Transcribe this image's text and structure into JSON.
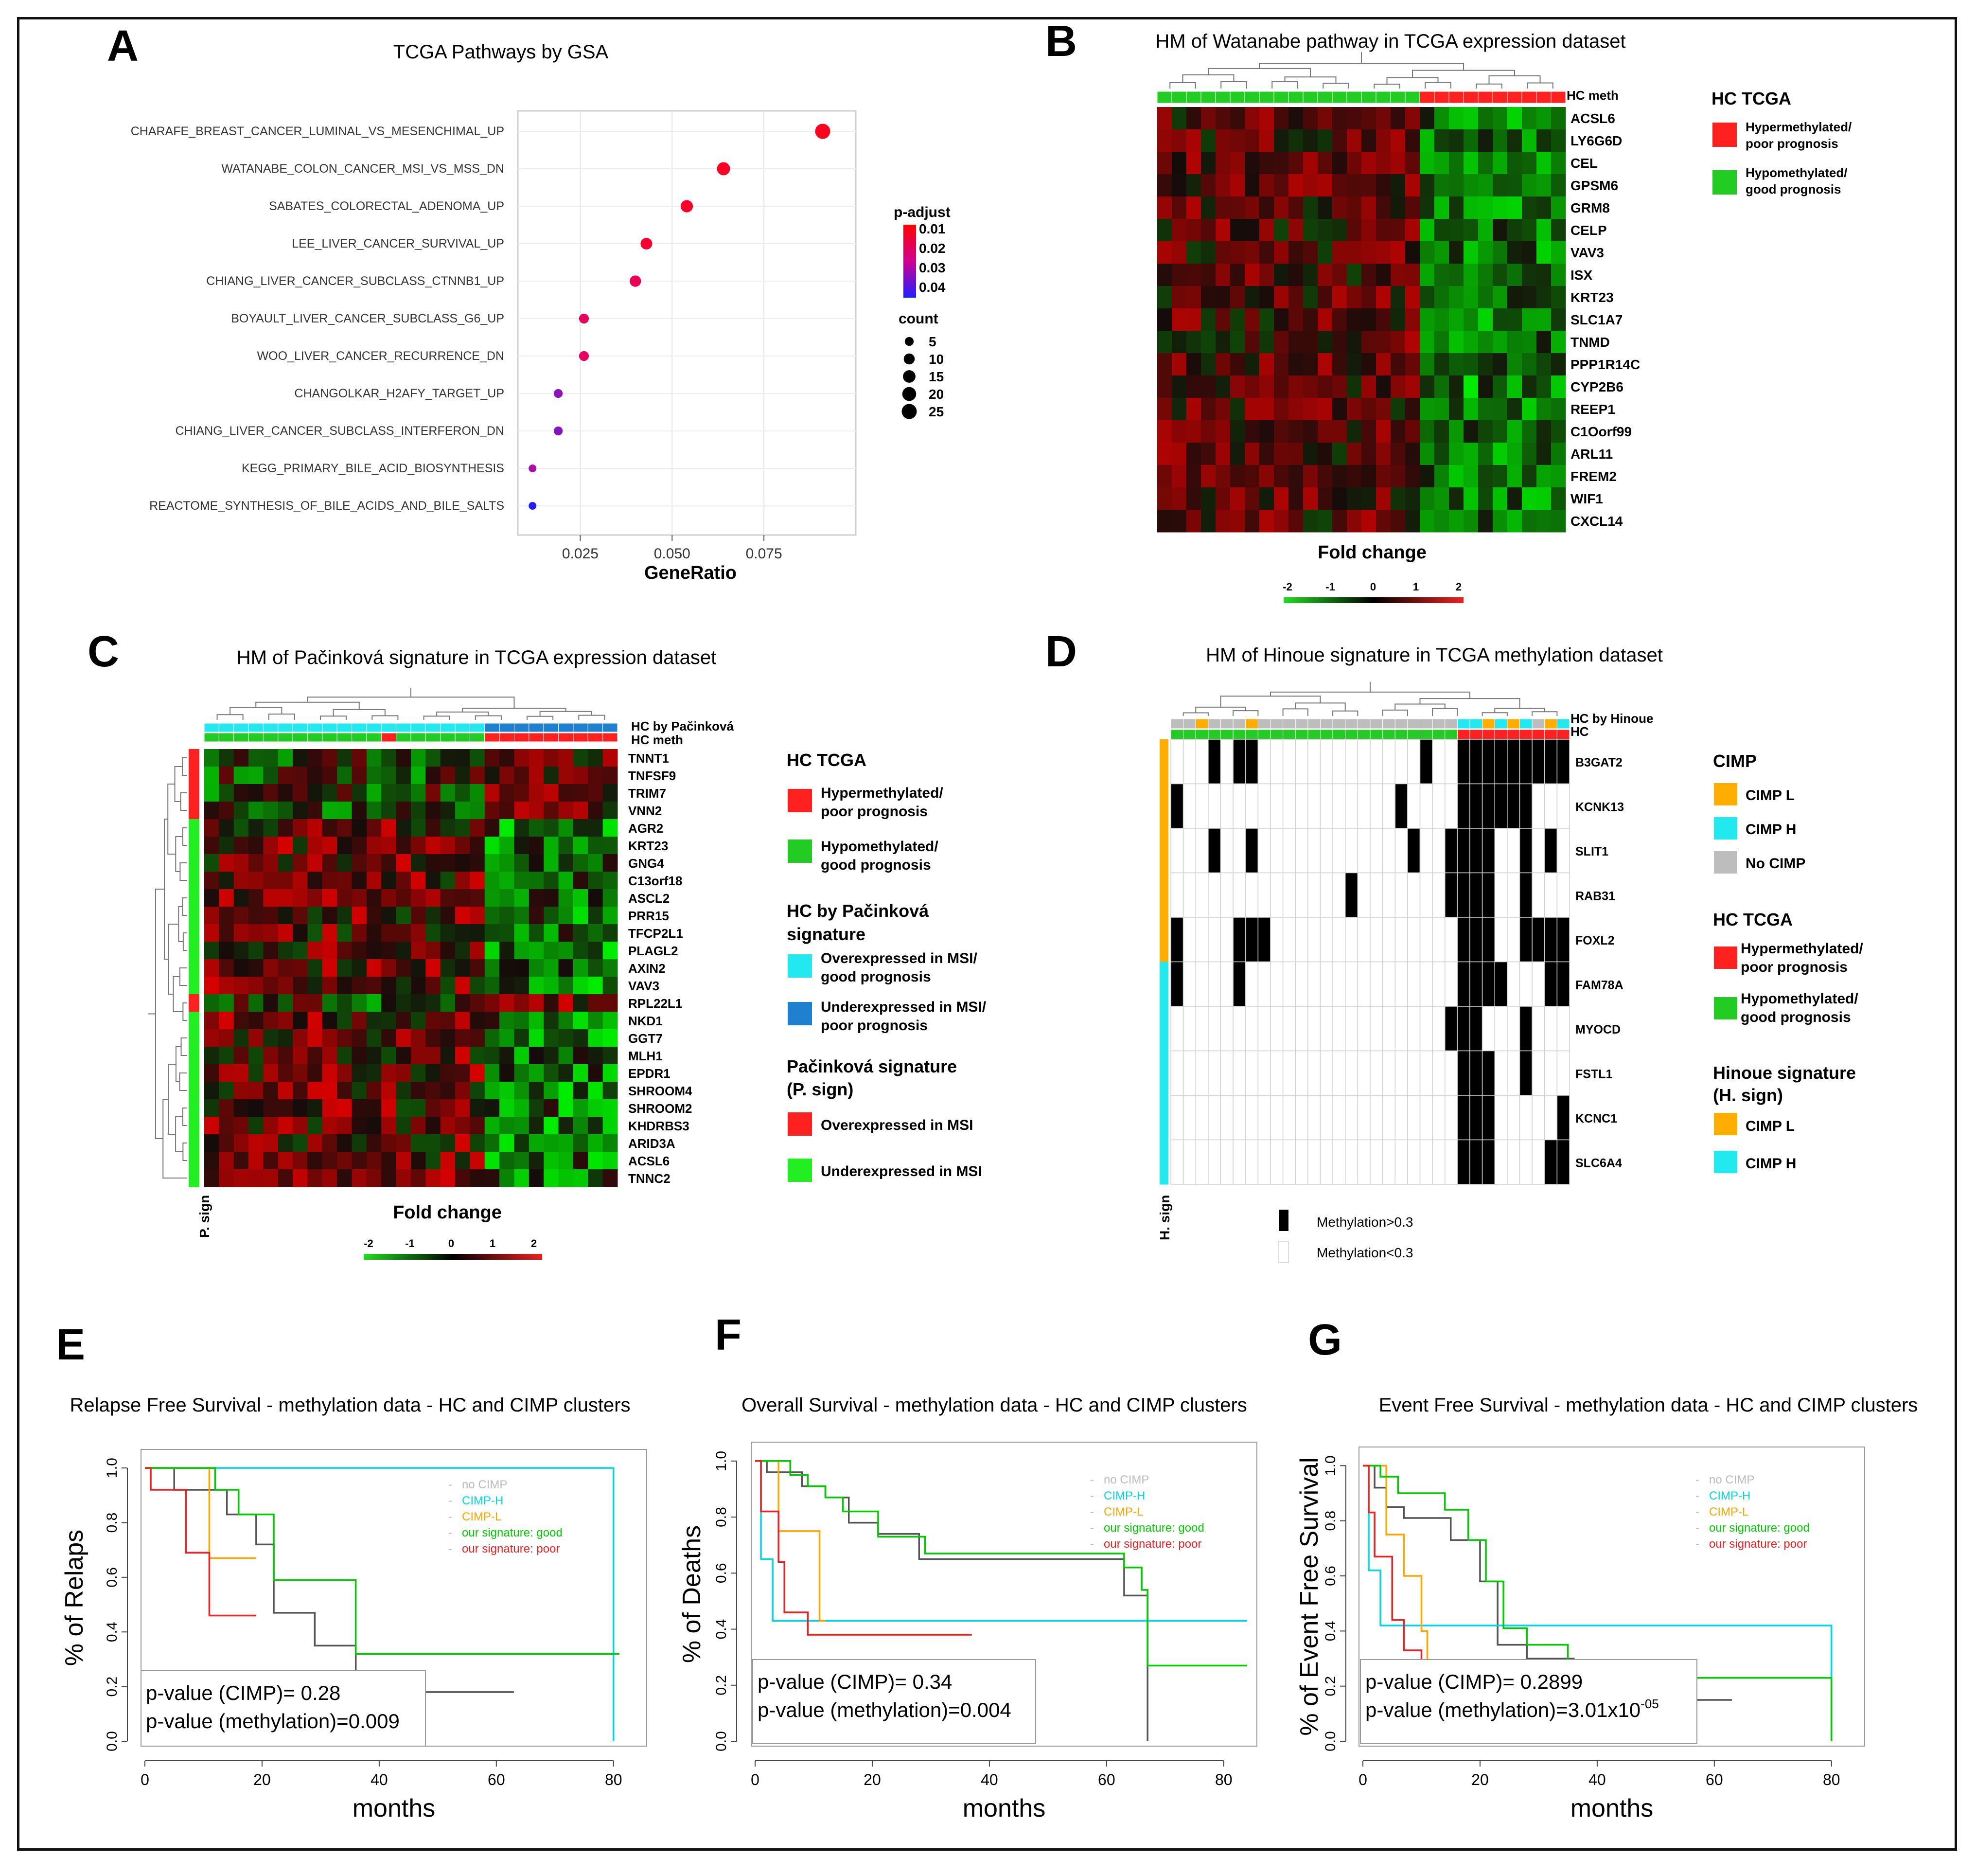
{
  "panels": {
    "A": {
      "letter": "A",
      "title": "TCGA Pathways  by GSA",
      "xlabel": "GeneRatio",
      "xticks": [
        0.025,
        0.05,
        0.075
      ],
      "xtick_labels": [
        "0.025",
        "0.050",
        "0.075"
      ],
      "xlim": [
        0.008,
        0.1
      ],
      "padj_title": "p-adjust",
      "padj_labels": [
        "0.01",
        "0.02",
        "0.03",
        "0.04"
      ],
      "count_title": "count",
      "count_labels": [
        "5",
        "10",
        "15",
        "20",
        "25"
      ]
    },
    "B": {
      "letter": "B",
      "title": "HM of Watanabe pathway in TCGA expression dataset",
      "bar_label": "HC meth",
      "legend_title": "HC TCGA",
      "legend_items": [
        "Hypermethylated/",
        "poor prognosis",
        "Hypomethylated/",
        "good prognosis"
      ],
      "fold_label": "Fold change",
      "scale_labels": [
        "-2",
        "-1",
        "0",
        "1",
        "2"
      ]
    },
    "C": {
      "letter": "C",
      "title": "HM of Pačinková signature in TCGA expression dataset",
      "bar_labels": [
        "HC by Pačinková",
        "HC meth"
      ],
      "side_label": "P. sign",
      "legend": {
        "hc_title": "HC TCGA",
        "hyper": [
          "Hypermethylated/",
          "poor prognosis"
        ],
        "hypo": [
          "Hypomethylated/",
          "good prognosis"
        ],
        "pac_title": [
          "HC by Pačinková",
          "signature"
        ],
        "over": [
          "Overexpressed in MSI/",
          "good prognosis"
        ],
        "under": [
          "Underexpressed in MSI/",
          "poor prognosis"
        ],
        "psign_title": [
          "Pačinková signature",
          "(P. sign)"
        ],
        "over_msi": "Overexpressed in MSI",
        "under_msi": "Underexpressed in MSI"
      },
      "fold_label": "Fold change",
      "scale_labels": [
        "-2",
        "-1",
        "0",
        "1",
        "2"
      ]
    },
    "D": {
      "letter": "D",
      "title": "HM of Hinoue signature in TCGA methylation dataset",
      "bar_labels": [
        "HC by Hinoue",
        "HC"
      ],
      "side_label": "H. sign",
      "genes": [
        "B3GAT2",
        "KCNK13",
        "SLIT1",
        "RAB31",
        "FOXL2",
        "FAM78A",
        "MYOCD",
        "FSTL1",
        "KCNC1",
        "SLC6A4"
      ],
      "meth_legend": [
        "Methylation>0.3",
        "Methylation<0.3"
      ],
      "legend": {
        "cimp_title": "CIMP",
        "cimp_l": "CIMP L",
        "cimp_h": "CIMP H",
        "no_cimp": "No CIMP",
        "hc_title": "HC TCGA",
        "hyper": [
          "Hypermethylated/",
          "poor prognosis"
        ],
        "hypo": [
          "Hypomethylated/",
          "good prognosis"
        ],
        "hsign_title": [
          "Hinoue signature",
          "(H. sign)"
        ],
        "hs_l": "CIMP L",
        "hs_h": "CIMP H"
      }
    },
    "E": {
      "letter": "E",
      "title": "Relapse Free Survival  - methylation data - HC and CIMP clusters",
      "ylabel": "% of Relaps",
      "xlabel": "months",
      "pvals": [
        "p-value (CIMP)= 0.28",
        "p-value (methylation)=0.009"
      ]
    },
    "F": {
      "letter": "F",
      "title": "Overall Survival - methylation data - HC and CIMP clusters",
      "ylabel": "% of Deaths",
      "xlabel": "months",
      "pvals": [
        "p-value (CIMP)= 0.34",
        "p-value (methylation)=0.004"
      ]
    },
    "G": {
      "letter": "G",
      "title": "Event Free Survival - methylation data - HC and CIMP clusters",
      "ylabel": "% of Event Free Survival",
      "xlabel": "months",
      "pvals": [
        "p-value (CIMP)= 0.2899",
        "p-value (methylation)=3.01x10"
      ],
      "pval_exp": "-05"
    }
  },
  "km_legend": [
    "no CIMP",
    "CIMP-H",
    "CIMP-L",
    "our signature: good",
    "our signature: poor"
  ],
  "km_colors": [
    "#bbbbbb",
    "#00d8e8",
    "#ffa500",
    "#00cc00",
    "#ee2020"
  ],
  "km_ylabels": [
    "0.0",
    "0.2",
    "0.4",
    "0.6",
    "0.8",
    "1.0"
  ],
  "colors": {
    "hyper": "#ff2020",
    "hypo": "#22cc22",
    "cimp_l": "#ffae00",
    "cimp_h": "#22e8f0",
    "no_cimp": "#bdbdbd",
    "over_msi_pac": "#22e8f0",
    "under_msi_pac": "#2080d0",
    "psign_over": "#ff2020",
    "psign_under": "#22ee22"
  },
  "chart_data": [
    {
      "type": "scatter",
      "title": "TCGA Pathways  by GSA",
      "xlabel": "GeneRatio",
      "points": [
        {
          "term": "CHARAFE_BREAST_CANCER_LUMINAL_VS_MESENCHIMAL_UP",
          "x": 0.091,
          "count": 25,
          "padj": 0.005
        },
        {
          "term": "WATANABE_COLON_CANCER_MSI_VS_MSS_DN",
          "x": 0.064,
          "count": 17,
          "padj": 0.006
        },
        {
          "term": "SABATES_COLORECTAL_ADENOMA_UP",
          "x": 0.054,
          "count": 14,
          "padj": 0.007
        },
        {
          "term": "LEE_LIVER_CANCER_SURVIVAL_UP",
          "x": 0.043,
          "count": 12,
          "padj": 0.008
        },
        {
          "term": "CHIANG_LIVER_CANCER_SUBCLASS_CTNNB1_UP",
          "x": 0.04,
          "count": 11,
          "padj": 0.015
        },
        {
          "term": "BOYAULT_LIVER_CANCER_SUBCLASS_G6_UP",
          "x": 0.026,
          "count": 7,
          "padj": 0.016
        },
        {
          "term": "WOO_LIVER_CANCER_RECURRENCE_DN",
          "x": 0.026,
          "count": 7,
          "padj": 0.017
        },
        {
          "term": "CHANGOLKAR_H2AFY_TARGET_UP",
          "x": 0.019,
          "count": 5,
          "padj": 0.033
        },
        {
          "term": "CHIANG_LIVER_CANCER_SUBCLASS_INTERFERON_DN",
          "x": 0.019,
          "count": 5,
          "padj": 0.034
        },
        {
          "term": "KEGG_PRIMARY_BILE_ACID_BIOSYNTHESIS",
          "x": 0.012,
          "count": 3,
          "padj": 0.03
        },
        {
          "term": "REACTOME_SYNTHESIS_OF_BILE_ACIDS_AND_BILE_SALTS",
          "x": 0.012,
          "count": 3,
          "padj": 0.045
        }
      ]
    },
    {
      "type": "heatmap",
      "title": "HM of Watanabe pathway in TCGA expression dataset",
      "rows": [
        "ACSL6",
        "LY6G6D",
        "CEL",
        "GPSM6",
        "GRM8",
        "CELP",
        "VAV3",
        "ISX",
        "KRT23",
        "SLC1A7",
        "TNMD",
        "PPP1R14C",
        "CYP2B6",
        "REEP1",
        "C1Oorf99",
        "ARL11",
        "FREM2",
        "WIF1",
        "CXCL14"
      ],
      "n_cols": 28,
      "hc_meth": {
        "hypomethylated_cols": 18,
        "hypermethylated_cols": 10
      },
      "scale": [
        -2,
        2
      ]
    },
    {
      "type": "heatmap",
      "title": "HM of Pačinková signature in TCGA expression dataset",
      "rows": [
        "TNNT1",
        "TNFSF9",
        "TRIM7",
        "VNN2",
        "AGR2",
        "KRT23",
        "GNG4",
        "C13orf18",
        "ASCL2",
        "PRR15",
        "TFCP2L1",
        "PLAGL2",
        "AXIN2",
        "VAV3",
        "RPL22L1",
        "NKD1",
        "GGT7",
        "MLH1",
        "EPDR1",
        "SHROOM4",
        "SHROOM2",
        "KHDRBS3",
        "ARID3A",
        "ACSL6",
        "TNNC2"
      ],
      "n_cols": 28,
      "scale": [
        -2,
        2
      ]
    },
    {
      "type": "heatmap",
      "title": "HM of Hinoue signature in TCGA methylation dataset",
      "rows": [
        "B3GAT2",
        "KCNK13",
        "SLIT1",
        "RAB31",
        "FOXL2",
        "FAM78A",
        "MYOCD",
        "FSTL1",
        "KCNC1",
        "SLC6A4"
      ],
      "n_cols": 32,
      "values": "binary (Methylation>0.3 black, <0.3 white)"
    },
    {
      "type": "line",
      "title": "Relapse Free Survival  - methylation data - HC and CIMP clusters",
      "xlabel": "months",
      "ylabel": "% of Relaps",
      "xlim": [
        0,
        85
      ],
      "ylim": [
        0,
        1.05
      ],
      "xticks": [
        0,
        20,
        40,
        60,
        80
      ],
      "series": [
        {
          "name": "no CIMP",
          "color": "#555555",
          "x": [
            0,
            5,
            14,
            19,
            22,
            29,
            36,
            63
          ],
          "y": [
            1,
            0.92,
            0.83,
            0.72,
            0.47,
            0.35,
            0.18,
            0.18
          ]
        },
        {
          "name": "CIMP-H",
          "color": "#00d8e8",
          "x": [
            0,
            80,
            80
          ],
          "y": [
            1,
            1,
            0.0
          ]
        },
        {
          "name": "CIMP-L",
          "color": "#ffa500",
          "x": [
            0,
            11,
            19
          ],
          "y": [
            1,
            0.67,
            0.67
          ]
        },
        {
          "name": "our signature: good",
          "color": "#00cc00",
          "x": [
            0,
            12,
            16,
            22,
            36,
            81
          ],
          "y": [
            1,
            0.92,
            0.83,
            0.59,
            0.32,
            0.32
          ]
        },
        {
          "name": "our signature: poor",
          "color": "#ee2020",
          "x": [
            0,
            1,
            7,
            11,
            19
          ],
          "y": [
            1,
            0.92,
            0.69,
            0.46,
            0.46
          ]
        }
      ],
      "pvals": [
        "p-value (CIMP)= 0.28",
        "p-value (methylation)=0.009"
      ]
    },
    {
      "type": "line",
      "title": "Overall Survival - methylation data - HC and CIMP clusters",
      "xlabel": "months",
      "ylabel": "% of Deaths",
      "xlim": [
        0,
        85
      ],
      "ylim": [
        0,
        1.05
      ],
      "xticks": [
        0,
        20,
        40,
        60,
        80
      ],
      "series": [
        {
          "name": "no CIMP",
          "color": "#555555",
          "x": [
            0,
            2,
            8,
            12,
            16,
            21,
            28,
            63,
            67,
            67
          ],
          "y": [
            1,
            0.96,
            0.91,
            0.87,
            0.78,
            0.74,
            0.65,
            0.52,
            0.52,
            0.0
          ]
        },
        {
          "name": "CIMP-H",
          "color": "#00d8e8",
          "x": [
            0,
            1,
            3,
            84
          ],
          "y": [
            1,
            0.65,
            0.43,
            0.43
          ]
        },
        {
          "name": "CIMP-L",
          "color": "#ffa500",
          "x": [
            0,
            4,
            11,
            12
          ],
          "y": [
            1,
            0.75,
            0.43,
            0.43
          ]
        },
        {
          "name": "our signature: good",
          "color": "#00cc00",
          "x": [
            0,
            6,
            9,
            12,
            15,
            21,
            29,
            63,
            66,
            67,
            84
          ],
          "y": [
            1,
            0.95,
            0.91,
            0.87,
            0.82,
            0.73,
            0.67,
            0.62,
            0.54,
            0.27,
            0.27
          ]
        },
        {
          "name": "our signature: poor",
          "color": "#ee2020",
          "x": [
            0,
            1,
            4,
            5,
            9,
            37
          ],
          "y": [
            1,
            0.82,
            0.64,
            0.46,
            0.38,
            0.38
          ]
        }
      ],
      "pvals": [
        "p-value (CIMP)= 0.34",
        "p-value (methylation)=0.004"
      ]
    },
    {
      "type": "line",
      "title": "Event Free Survival - methylation data - HC and CIMP clusters",
      "xlabel": "months",
      "ylabel": "% of Event Free Survival",
      "xlim": [
        0,
        85
      ],
      "ylim": [
        0,
        1.05
      ],
      "xticks": [
        0,
        20,
        40,
        60,
        80
      ],
      "series": [
        {
          "name": "no CIMP",
          "color": "#555555",
          "x": [
            0,
            2,
            4,
            7,
            15,
            20,
            23,
            28,
            36,
            63
          ],
          "y": [
            1,
            0.92,
            0.85,
            0.81,
            0.73,
            0.58,
            0.35,
            0.3,
            0.15,
            0.15
          ]
        },
        {
          "name": "CIMP-H",
          "color": "#00d8e8",
          "x": [
            0,
            1,
            3,
            79,
            80
          ],
          "y": [
            1,
            0.62,
            0.42,
            0.42,
            0.0
          ]
        },
        {
          "name": "CIMP-L",
          "color": "#ffa500",
          "x": [
            0,
            4,
            7,
            10,
            11,
            20
          ],
          "y": [
            1,
            0.75,
            0.6,
            0.4,
            0.2,
            0.2
          ]
        },
        {
          "name": "our signature: good",
          "color": "#00cc00",
          "x": [
            0,
            3,
            6,
            14,
            18,
            21,
            24,
            28,
            35,
            80,
            80
          ],
          "y": [
            1,
            0.96,
            0.9,
            0.84,
            0.73,
            0.58,
            0.41,
            0.35,
            0.23,
            0.23,
            0.0
          ]
        },
        {
          "name": "our signature: poor",
          "color": "#ee2020",
          "x": [
            0,
            1,
            2,
            5,
            7,
            10,
            11
          ],
          "y": [
            1,
            0.83,
            0.67,
            0.44,
            0.33,
            0.15,
            0.15
          ]
        }
      ],
      "pvals": [
        "p-value (CIMP)= 0.2899",
        "p-value (methylation)=3.01x10-05"
      ]
    }
  ]
}
